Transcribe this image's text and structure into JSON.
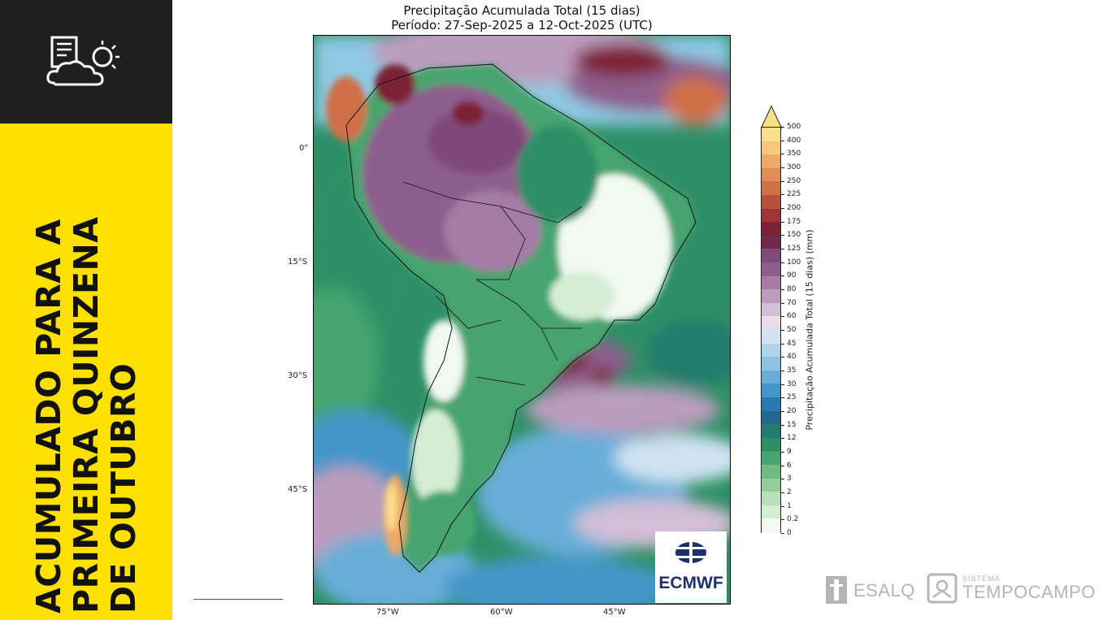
{
  "sidebar": {
    "title": "ACUMULADO PARA A PRIMEIRA QUINZENA DE OUTUBRO",
    "icon": "weather-report-icon"
  },
  "map": {
    "title_line1": "Precipitação Acumulada Total (15 dias)",
    "title_line2": "Período: 27-Sep-2025 a 12-Oct-2025 (UTC)",
    "lat_labels": [
      "0°",
      "15°S",
      "30°S",
      "45°S"
    ],
    "lon_labels": [
      "75°W",
      "60°W",
      "45°W"
    ]
  },
  "colorbar": {
    "title": "Precipitação Acumulada Total (15 dias) (mm)",
    "ticks": [
      "500",
      "400",
      "350",
      "300",
      "250",
      "225",
      "200",
      "175",
      "150",
      "125",
      "100",
      "90",
      "80",
      "70",
      "60",
      "50",
      "45",
      "40",
      "35",
      "30",
      "25",
      "20",
      "15",
      "12",
      "9",
      "6",
      "3",
      "2",
      "1",
      "0.2",
      "0"
    ],
    "colors": [
      "#fbe08a",
      "#f6c87a",
      "#eea968",
      "#e08d57",
      "#cf7048",
      "#b8503d",
      "#9e3637",
      "#7d2236",
      "#6e2a4a",
      "#7e4a78",
      "#8e5e8c",
      "#a57ca6",
      "#bb9cbd",
      "#d2bed6",
      "#e6dcea",
      "#cfe3f1",
      "#afd3ea",
      "#8cc2e2",
      "#67aed8",
      "#4496c8",
      "#2779b2",
      "#23698f",
      "#237c6e",
      "#2e8f66",
      "#47a46e",
      "#6fbb83",
      "#94cf9b",
      "#b6e0b8",
      "#d4eed5",
      "#f1f9f1"
    ]
  },
  "logos": {
    "ecmwf": "ECMWF",
    "esalq": "ESALQ",
    "tempocampo_small": "SISTEMA",
    "tempocampo": "TEMPOCAMPO"
  }
}
